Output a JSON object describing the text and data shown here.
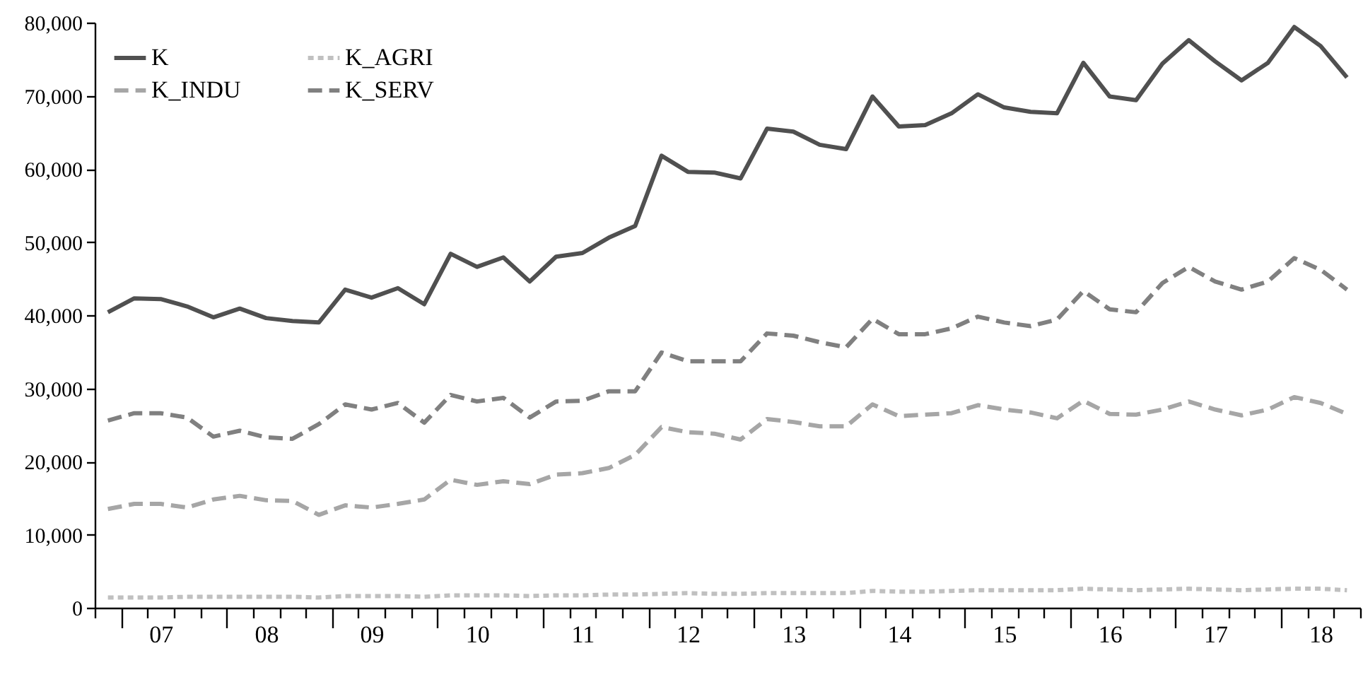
{
  "chart_data": {
    "type": "line",
    "categories": [
      null,
      null,
      "07",
      null,
      null,
      null,
      "08",
      null,
      null,
      null,
      "09",
      null,
      null,
      null,
      "10",
      null,
      null,
      null,
      "11",
      null,
      null,
      null,
      "12",
      null,
      null,
      null,
      "13",
      null,
      null,
      null,
      "14",
      null,
      null,
      null,
      "15",
      null,
      null,
      null,
      "16",
      null,
      null,
      null,
      "17",
      null,
      null,
      null,
      "18",
      null
    ],
    "series": [
      {
        "name": "K",
        "color": "#505050",
        "line_style": "solid",
        "values": [
          40400,
          42300,
          42200,
          41200,
          39700,
          40900,
          39600,
          39200,
          39000,
          43500,
          42400,
          43700,
          41500,
          48400,
          46600,
          47900,
          44600,
          48000,
          48500,
          50600,
          52200,
          61800,
          59600,
          59500,
          58700,
          65500,
          65100,
          63300,
          62700,
          69900,
          65800,
          66000,
          67600,
          70200,
          68400,
          67800,
          67600,
          74500,
          69900,
          69400,
          74400,
          77600,
          74700,
          72100,
          74500,
          79400,
          76800,
          72500
        ]
      },
      {
        "name": "K_AGRI",
        "color": "#c0c0c0",
        "line_style": "dotted",
        "values": [
          1400,
          1400,
          1400,
          1500,
          1500,
          1500,
          1500,
          1500,
          1400,
          1600,
          1600,
          1600,
          1500,
          1700,
          1700,
          1700,
          1600,
          1700,
          1700,
          1800,
          1800,
          1900,
          2000,
          1900,
          1900,
          2000,
          2000,
          2000,
          2000,
          2300,
          2200,
          2200,
          2300,
          2400,
          2400,
          2400,
          2400,
          2600,
          2500,
          2400,
          2500,
          2600,
          2500,
          2400,
          2500,
          2600,
          2600,
          2400
        ]
      },
      {
        "name": "K_INDU",
        "color": "#a6a6a6",
        "line_style": "dashed",
        "values": [
          13500,
          14200,
          14200,
          13700,
          14800,
          15300,
          14700,
          14600,
          12700,
          14000,
          13700,
          14200,
          14800,
          17500,
          16800,
          17300,
          16900,
          18200,
          18400,
          19100,
          20900,
          24700,
          24000,
          23800,
          23000,
          25800,
          25400,
          24800,
          24800,
          27800,
          26200,
          26400,
          26600,
          27700,
          27100,
          26700,
          25900,
          28300,
          26500,
          26400,
          27100,
          28200,
          27100,
          26300,
          27100,
          28800,
          28000,
          26500
        ]
      },
      {
        "name": "K_SERV",
        "color": "#808080",
        "line_style": "dashed",
        "values": [
          25600,
          26600,
          26600,
          26000,
          23400,
          24200,
          23300,
          23100,
          25100,
          27800,
          27100,
          28000,
          25300,
          29100,
          28200,
          28700,
          26000,
          28200,
          28300,
          29600,
          29600,
          34900,
          33700,
          33700,
          33700,
          37500,
          37200,
          36300,
          35600,
          39500,
          37400,
          37400,
          38200,
          39800,
          39000,
          38500,
          39400,
          43300,
          40800,
          40400,
          44400,
          46600,
          44600,
          43500,
          44600,
          47800,
          46200,
          43500
        ]
      }
    ],
    "ylim": [
      0,
      80000
    ],
    "yticks": [
      0,
      {
        "value": 10000,
        "label": "10,000"
      },
      {
        "value": 20000,
        "label": "20,000"
      },
      {
        "value": 30000,
        "label": "30,000"
      },
      {
        "value": 40000,
        "label": "40,000"
      },
      {
        "value": 50000,
        "label": "50,000"
      },
      {
        "value": 60000,
        "label": "60,000"
      },
      {
        "value": 70000,
        "label": "70,000"
      },
      {
        "value": 80000,
        "label": "80,000"
      }
    ],
    "grid": false,
    "legend": "top left"
  }
}
